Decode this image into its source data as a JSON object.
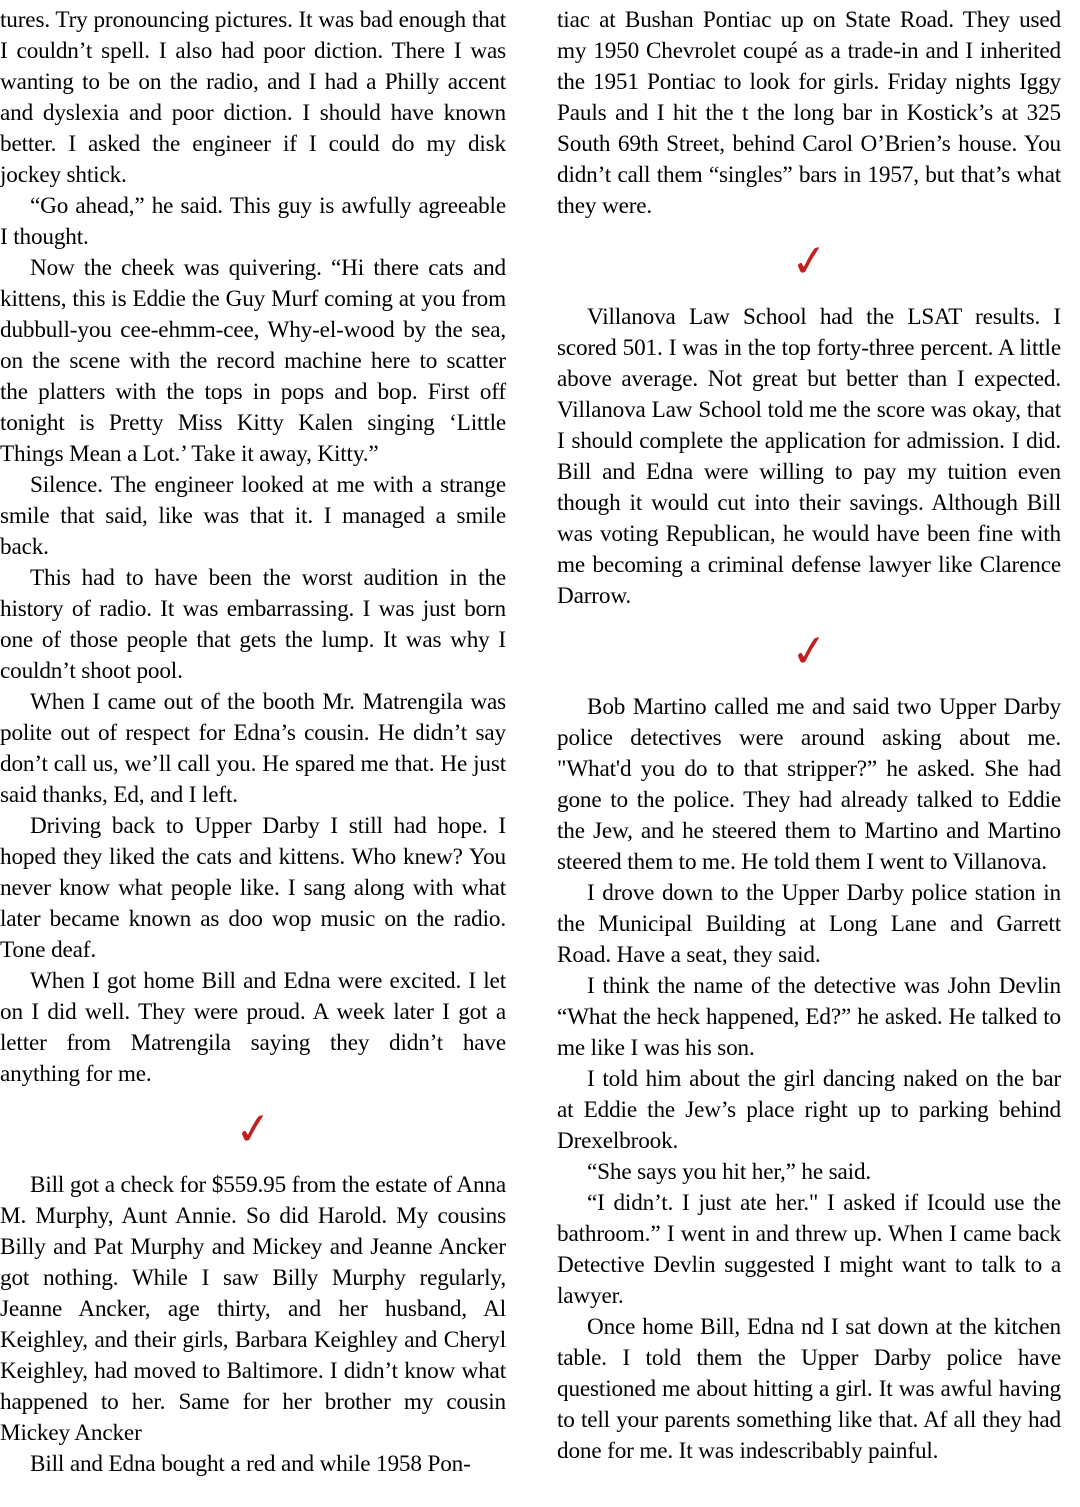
{
  "page": {
    "background": "#ffffff",
    "text_color": "#000000",
    "accent_red": "#c41f1f"
  },
  "divider_glyph": "✓",
  "columns": {
    "left": {
      "blocks": [
        {
          "type": "p",
          "indent": false,
          "text": "tures. Try pronouncing pictures. It was bad enough that I couldn’t spell. I also had poor diction. There I was wanting to be on the radio, and I had a Philly accent and dyslexia and poor diction. I should have known better. I asked the engineer if I could do my disk jockey shtick."
        },
        {
          "type": "p",
          "indent": true,
          "text": "“Go ahead,” he said. This guy is awfully agreeable I thought."
        },
        {
          "type": "p",
          "indent": true,
          "text": "Now the cheek was quivering. “Hi there cats and kittens, this is Eddie the Guy Murf coming at you from dubbull-you cee-ehmm-cee, Why-el-wood by the sea, on the scene with the record machine here to scatter the platters with the tops in pops and bop. First off tonight is Pretty Miss Kitty Kalen singing ‘Little Things Mean a Lot.’ Take it away, Kitty.”"
        },
        {
          "type": "p",
          "indent": true,
          "text": "Silence. The engineer looked at me with a strange smile that said, like was that it. I managed a smile back."
        },
        {
          "type": "p",
          "indent": true,
          "text": "This had to have been the worst audition in the history of radio. It was embarrassing. I was just born one of those people that gets the lump. It was why I couldn’t shoot pool."
        },
        {
          "type": "p",
          "indent": true,
          "text": "When I came out of the booth Mr. Matrengila was polite out of respect for Edna’s cousin. He didn’t say don’t call us, we’ll call you. He spared me that. He just said thanks, Ed, and I left."
        },
        {
          "type": "p",
          "indent": true,
          "text": "Driving back to Upper Darby I still had hope. I hoped they liked the cats and kittens. Who knew? You never know what people like. I sang along with what later became known as doo wop music on the radio. Tone deaf."
        },
        {
          "type": "p",
          "indent": true,
          "text": "When I got home Bill and Edna were excited. I let on I did well. They were proud. A week later I got a letter from Matrengila saying they didn’t have anything for me."
        },
        {
          "type": "divider"
        },
        {
          "type": "p",
          "indent": true,
          "text": "Bill got a check for $559.95 from the estate of Anna M. Murphy, Aunt Annie. So did Harold. My cousins Billy and Pat Murphy and Mickey and Jeanne Ancker got nothing. While I saw Billy Murphy regularly, Jeanne Ancker, age thirty, and her husband, Al Keighley, and their girls, Barbara Keighley and Cheryl Keighley, had moved to Baltimore. I didn’t know what happened to her. Same for her brother my cousin Mickey Ancker"
        },
        {
          "type": "p",
          "indent": true,
          "text": "Bill and Edna bought a red and while 1958 Pon-"
        }
      ]
    },
    "right": {
      "blocks": [
        {
          "type": "p",
          "indent": false,
          "text": "tiac at Bushan Pontiac up on State Road. They used my 1950 Chevrolet coupé as a trade-in and I inherited the 1951 Pontiac to look for girls. Friday nights Iggy Pauls and I hit the t the long bar in Kostick’s at 325 South 69th Street, behind Carol O’Brien’s house. You didn’t call them “singles” bars in 1957, but that’s what they were."
        },
        {
          "type": "divider"
        },
        {
          "type": "p",
          "indent": true,
          "text": "Villanova Law School had the LSAT results. I scored 501. I was in the top forty-three percent. A little above average. Not great but better than I expected. Villanova Law School told me the score was okay, that I should complete the application for admission. I did.  Bill and Edna were willing to pay my tuition even though it would cut into their savings. Although Bill was voting Republican, he would have been fine with me becoming a criminal defense lawyer like Clarence Darrow."
        },
        {
          "type": "divider"
        },
        {
          "type": "p",
          "indent": true,
          "text": "Bob Martino called me and said two Upper Darby police detectives were around asking about me. \"What'd you do to that stripper?” he asked. She had gone to the police. They had already talked to Eddie the Jew, and he steered them to Martino and Martino steered them to me. He told them I went to Villanova."
        },
        {
          "type": "p",
          "indent": true,
          "text": "I drove down to the Upper Darby police station in the Municipal Building at Long Lane and Garrett Road. Have a seat, they said."
        },
        {
          "type": "p",
          "indent": true,
          "text": "I think the name of the detective was John Devlin “What the heck happened, Ed?” he asked. He talked to me like I was his son."
        },
        {
          "type": "p",
          "indent": true,
          "text": "I told him about the girl dancing naked on the bar at Eddie the Jew’s place right up to parking behind Drexelbrook."
        },
        {
          "type": "p",
          "indent": true,
          "text": "“She says you hit her,” he said."
        },
        {
          "type": "p",
          "indent": true,
          "text": "“I didn’t. I just ate her.\" I asked if Icould use the bathroom.” I went in and threw up. When I came back Detective Devlin suggested I might want to talk to a lawyer."
        },
        {
          "type": "p",
          "indent": true,
          "text": "Once home Bill, Edna nd I sat down at the kitchen table. I told them the Upper Darby police have questioned me about hitting a girl. It was awful having to tell your parents something like that.  Af all they had done for me. It was indescribably painful."
        }
      ]
    }
  }
}
